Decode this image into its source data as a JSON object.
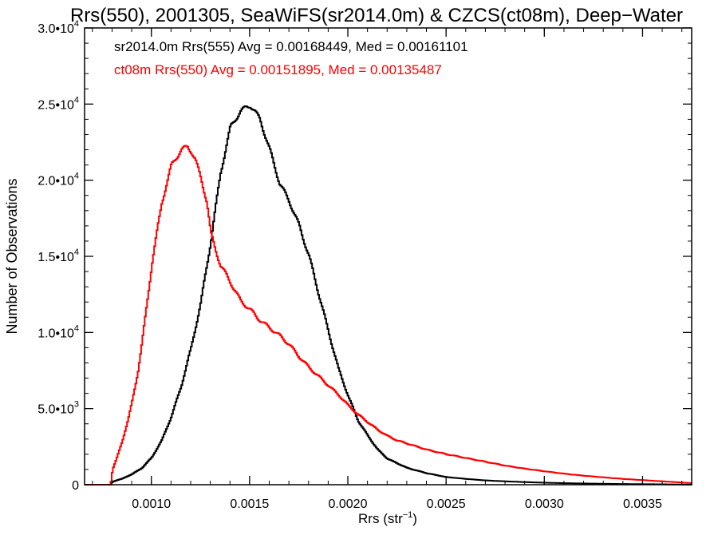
{
  "chart_data": {
    "type": "line",
    "title": "Rrs(550), 2001305, SeaWiFS(sr2014.0m) & CZCS(ct08m), Deep−Water",
    "xlabel_main": "Rrs (str",
    "xlabel_sup": "−1",
    "xlabel_close": ")",
    "ylabel": "Number of Observations",
    "xlim": [
      0.00066,
      0.00375
    ],
    "ylim": [
      0,
      30000
    ],
    "x_ticks": [
      0.001,
      0.0015,
      0.002,
      0.0025,
      0.003,
      0.0035
    ],
    "x_tick_labels": [
      "0.0010",
      "0.0015",
      "0.0020",
      "0.0025",
      "0.0030",
      "0.0035"
    ],
    "y_ticks": [
      0,
      5000,
      10000,
      15000,
      20000,
      25000,
      30000
    ],
    "y_tick_labels": [
      {
        "base": "0",
        "exp": ""
      },
      {
        "base": "5.0•10",
        "exp": "3"
      },
      {
        "base": "1.0•10",
        "exp": "4"
      },
      {
        "base": "1.5•10",
        "exp": "4"
      },
      {
        "base": "2.0•10",
        "exp": "4"
      },
      {
        "base": "2.5•10",
        "exp": "4"
      },
      {
        "base": "3.0•10",
        "exp": "4"
      }
    ],
    "legend_placement": "top-left",
    "annotations": [
      {
        "text": "sr2014.0m Rrs(555) Avg = 0.00168449, Med = 0.00161101",
        "color": "#000000"
      },
      {
        "text": "ct08m Rrs(550) Avg = 0.00151895, Med = 0.00135487",
        "color": "#ff0000"
      }
    ],
    "series": [
      {
        "name": "sr2014.0m Rrs(555)",
        "color": "#000000",
        "x": [
          0.00066,
          0.00079,
          0.0008,
          0.00085,
          0.0009,
          0.00095,
          0.001,
          0.00105,
          0.0011,
          0.00115,
          0.0012,
          0.00125,
          0.0013,
          0.00135,
          0.0014,
          0.00145,
          0.00148,
          0.0015,
          0.00152,
          0.00155,
          0.0016,
          0.00165,
          0.0017,
          0.00175,
          0.0018,
          0.00185,
          0.0019,
          0.00195,
          0.002,
          0.00205,
          0.0021,
          0.00215,
          0.0022,
          0.00225,
          0.0023,
          0.0024,
          0.0025,
          0.0026,
          0.0027,
          0.0028,
          0.0029,
          0.003,
          0.0031,
          0.0032,
          0.0033,
          0.0034,
          0.0035,
          0.0036,
          0.00375
        ],
        "y": [
          0,
          0,
          200,
          400,
          700,
          1100,
          1800,
          2900,
          4500,
          6500,
          9000,
          12000,
          16000,
          20500,
          23500,
          24500,
          24800,
          24900,
          24600,
          24000,
          22000,
          19800,
          18600,
          17000,
          15000,
          12500,
          10000,
          7600,
          5800,
          4200,
          3200,
          2300,
          1700,
          1400,
          1100,
          750,
          500,
          380,
          280,
          220,
          170,
          130,
          100,
          80,
          60,
          45,
          35,
          25,
          0
        ]
      },
      {
        "name": "ct08m Rrs(550)",
        "color": "#ff0000",
        "x": [
          0.00066,
          0.00079,
          0.0008,
          0.00082,
          0.00085,
          0.00088,
          0.0009,
          0.00093,
          0.00095,
          0.001,
          0.00105,
          0.0011,
          0.00115,
          0.00118,
          0.0012,
          0.00122,
          0.00125,
          0.00128,
          0.0013,
          0.00132,
          0.00135,
          0.0014,
          0.00145,
          0.0015,
          0.00155,
          0.0016,
          0.00165,
          0.0017,
          0.00175,
          0.0018,
          0.00185,
          0.0019,
          0.00195,
          0.002,
          0.00205,
          0.0021,
          0.00215,
          0.0022,
          0.00225,
          0.0023,
          0.0024,
          0.0025,
          0.0026,
          0.0027,
          0.0028,
          0.0029,
          0.003,
          0.0031,
          0.0032,
          0.0033,
          0.0034,
          0.0035,
          0.0036,
          0.00375
        ],
        "y": [
          0,
          0,
          1000,
          1700,
          2900,
          4300,
          5500,
          7500,
          9300,
          14500,
          18500,
          21000,
          22000,
          22200,
          21900,
          21400,
          20100,
          18600,
          16500,
          15600,
          14400,
          13300,
          12100,
          11500,
          10800,
          10300,
          9800,
          9200,
          8400,
          7700,
          7100,
          6500,
          5900,
          5200,
          4600,
          4100,
          3600,
          3200,
          2900,
          2700,
          2300,
          2000,
          1750,
          1500,
          1250,
          1050,
          880,
          720,
          590,
          480,
          380,
          300,
          220,
          100
        ]
      }
    ]
  }
}
